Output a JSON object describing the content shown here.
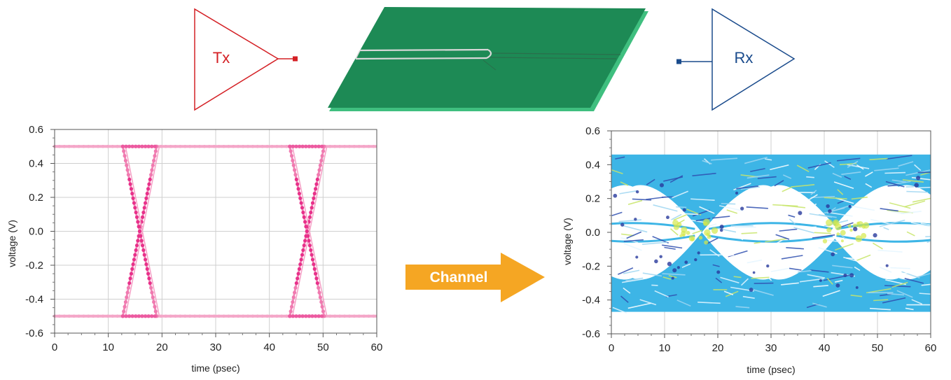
{
  "tx": {
    "label": "Tx",
    "color": "#d42025"
  },
  "rx": {
    "label": "Rx",
    "color": "#1a4b8c"
  },
  "board": {
    "color": "#1d8a55",
    "edge_color": "#3fbf7f"
  },
  "channel": {
    "label": "Channel",
    "color": "#f5a623"
  },
  "chart_data": [
    {
      "id": "tx-eye",
      "type": "scatter",
      "title": "",
      "xlabel": "time (psec)",
      "ylabel": "voltage (V)",
      "xlim": [
        0,
        60
      ],
      "ylim": [
        -0.6,
        0.6
      ],
      "x_ticks": [
        "0",
        "10",
        "20",
        "30",
        "40",
        "50",
        "60"
      ],
      "y_ticks": [
        "-0.6",
        "-0.4",
        "-0.2",
        "0.0",
        "0.2",
        "0.4",
        "0.6"
      ],
      "grid": true,
      "color": "#e8308a",
      "levels": [
        0.5,
        -0.5
      ],
      "crossings": [
        {
          "rise_start": 12.7,
          "rise_end": 19.0,
          "fall_start": 12.7,
          "fall_end": 19.0
        },
        {
          "rise_start": 43.8,
          "rise_end": 50.2,
          "fall_start": 43.8,
          "fall_end": 50.2
        }
      ]
    },
    {
      "id": "rx-eye",
      "type": "scatter",
      "title": "",
      "xlabel": "time (psec)",
      "ylabel": "voltage (V)",
      "xlim": [
        0,
        60
      ],
      "ylim": [
        -0.6,
        0.6
      ],
      "x_ticks": [
        "0",
        "10",
        "20",
        "30",
        "40",
        "50",
        "60"
      ],
      "y_ticks": [
        "-0.6",
        "-0.4",
        "-0.2",
        "0.0",
        "0.2",
        "0.4",
        "0.6"
      ],
      "grid": true,
      "color": "#3db5e6",
      "envelope": [
        -0.47,
        0.46
      ],
      "eye_centers": [
        4,
        30,
        54
      ],
      "crossing_times": [
        16,
        44
      ],
      "eye_half_height": 0.27
    }
  ]
}
